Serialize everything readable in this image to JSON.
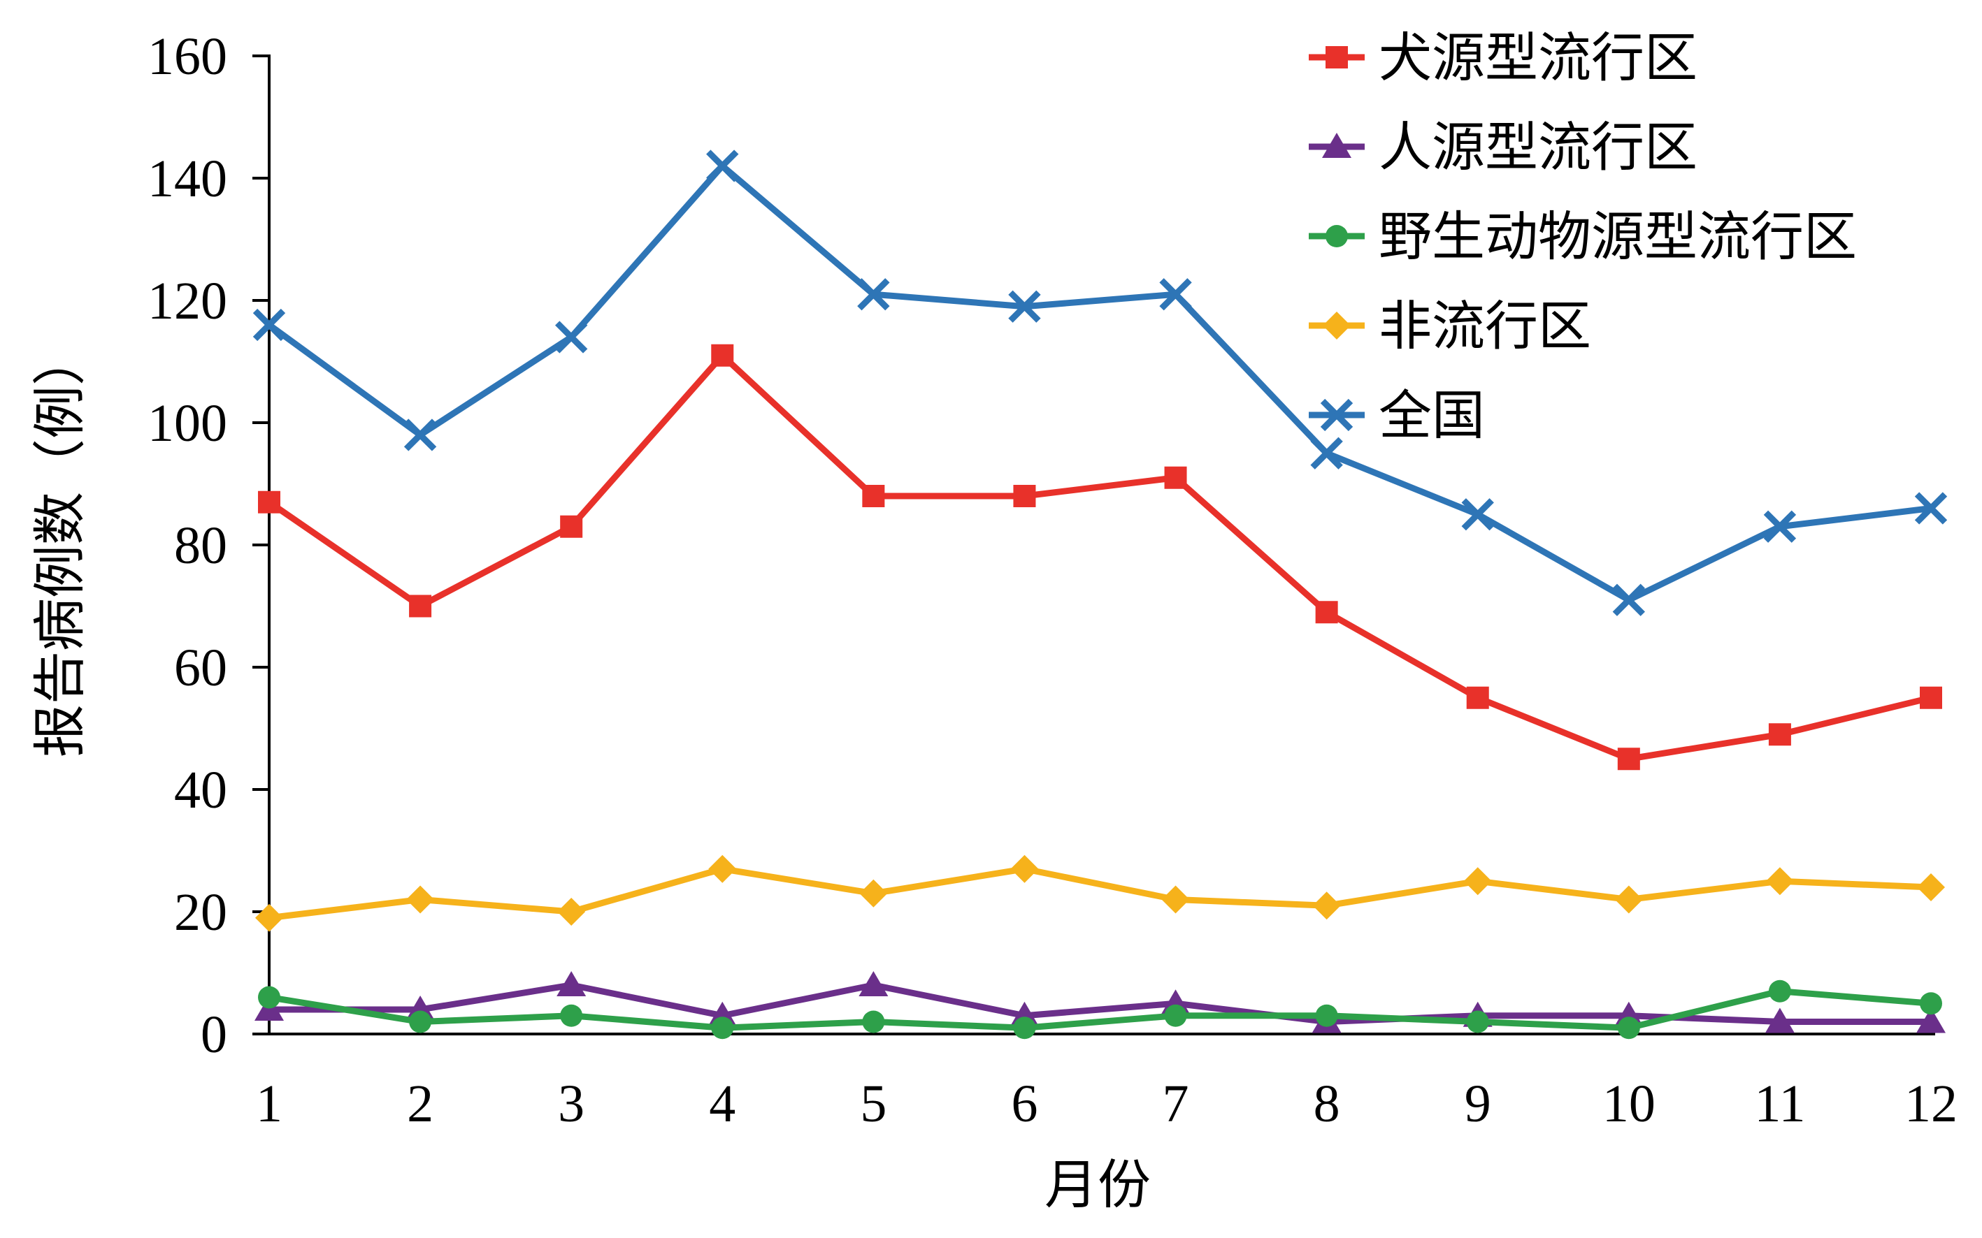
{
  "chart_data": {
    "type": "line",
    "title": "",
    "xlabel": "月份",
    "ylabel": "报告病例数（例）",
    "ylim": [
      0,
      160
    ],
    "yticks": [
      0,
      20,
      40,
      60,
      80,
      100,
      120,
      140,
      160
    ],
    "x": [
      1,
      2,
      3,
      4,
      5,
      6,
      7,
      8,
      9,
      10,
      11,
      12
    ],
    "xtick_labels": [
      "1",
      "2",
      "3",
      "4",
      "5",
      "6",
      "7",
      "8",
      "9",
      "10",
      "11",
      "12"
    ],
    "grid": false,
    "legend_position": "top-right",
    "series": [
      {
        "name": "犬源型流行区",
        "color": "#e8312a",
        "marker": "square",
        "values": [
          87,
          70,
          83,
          111,
          88,
          88,
          91,
          69,
          55,
          45,
          49,
          55
        ]
      },
      {
        "name": "人源型流行区",
        "color": "#6a2f8a",
        "marker": "triangle",
        "values": [
          4,
          4,
          8,
          3,
          8,
          3,
          5,
          2,
          3,
          3,
          2,
          2
        ]
      },
      {
        "name": "野生动物源型流行区",
        "color": "#2ea04a",
        "marker": "circle",
        "values": [
          6,
          2,
          3,
          1,
          2,
          1,
          3,
          3,
          2,
          1,
          7,
          5
        ]
      },
      {
        "name": "非流行区",
        "color": "#f6b21b",
        "marker": "diamond",
        "values": [
          19,
          22,
          20,
          27,
          23,
          27,
          22,
          21,
          25,
          22,
          25,
          24
        ]
      },
      {
        "name": "全国",
        "color": "#2e75b6",
        "marker": "x",
        "values": [
          116,
          98,
          114,
          142,
          121,
          119,
          121,
          95,
          85,
          71,
          83,
          86
        ]
      }
    ]
  }
}
